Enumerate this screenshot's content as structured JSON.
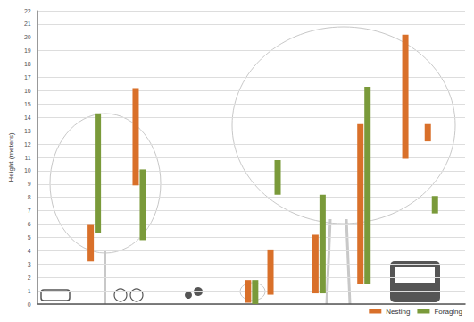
{
  "chart_data": {
    "type": "range_bar",
    "y_label": "Height (meters)",
    "categories": [
      null,
      null,
      null,
      null,
      null,
      null,
      null,
      null,
      null,
      null,
      null,
      null,
      null,
      null,
      null,
      null,
      null,
      null,
      null
    ],
    "series": [
      {
        "name": "Nesting",
        "color": "#d9702a",
        "values": [
          null,
          null,
          [
            3.2,
            6
          ],
          null,
          [
            8.9,
            16.2
          ],
          null,
          null,
          null,
          null,
          [
            0.1,
            1.8
          ],
          [
            0.7,
            4.1
          ],
          null,
          [
            0.8,
            5.2
          ],
          null,
          [
            1.5,
            13.5
          ],
          null,
          [
            10.9,
            20.2
          ],
          [
            12.2,
            13.5
          ],
          null
        ]
      },
      {
        "name": "Foraging",
        "color": "#7a9a3a",
        "values": [
          null,
          null,
          [
            5.3,
            14.3
          ],
          null,
          [
            4.8,
            10.1
          ],
          null,
          null,
          null,
          null,
          [
            0,
            1.8
          ],
          [
            8.2,
            10.8
          ],
          null,
          [
            0.8,
            8.2
          ],
          null,
          [
            1.5,
            16.3
          ],
          null,
          null,
          [
            6.8,
            8.1
          ],
          null
        ]
      }
    ],
    "ylim": [
      0,
      22
    ],
    "yticks": [
      0,
      1,
      2,
      3,
      4,
      5,
      6,
      7,
      8,
      9,
      10,
      11,
      12,
      13,
      14,
      15,
      16,
      17,
      18,
      19,
      20,
      21,
      22
    ],
    "grid": true,
    "legend": "lower right",
    "tick_labels": "y"
  }
}
